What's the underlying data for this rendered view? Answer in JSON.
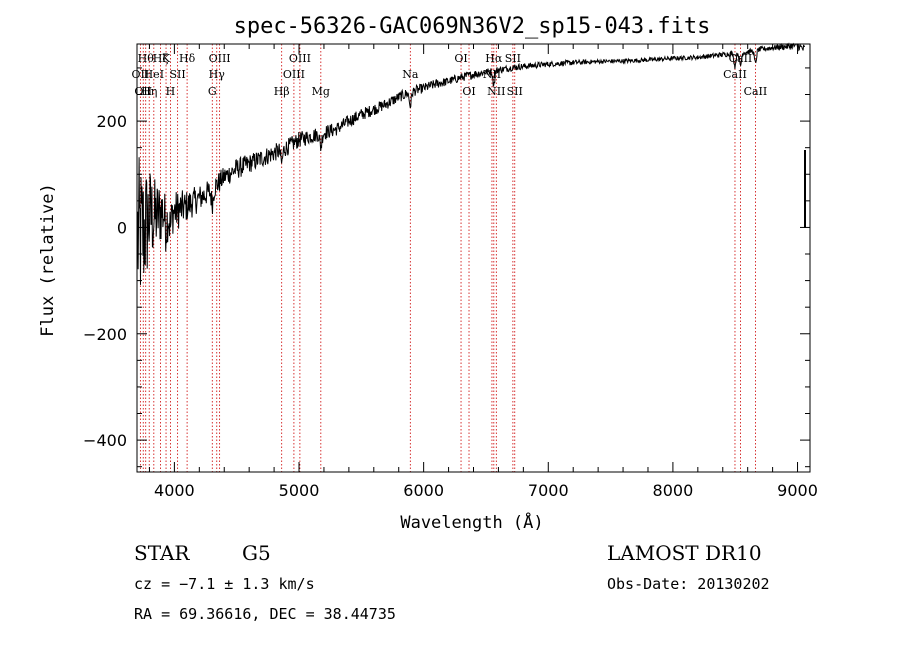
{
  "chart_data": {
    "type": "line",
    "title": "spec-56326-GAC069N36V2_sp15-043.fits",
    "xlabel": "Wavelength (Å)",
    "ylabel": "Flux (relative)",
    "xlim": [
      3700,
      9100
    ],
    "ylim": [
      -460,
      345
    ],
    "xticks": [
      {
        "value": 4000,
        "label": "4000"
      },
      {
        "value": 5000,
        "label": "5000"
      },
      {
        "value": 6000,
        "label": "6000"
      },
      {
        "value": 7000,
        "label": "7000"
      },
      {
        "value": 8000,
        "label": "8000"
      },
      {
        "value": 9000,
        "label": "9000"
      }
    ],
    "yticks": [
      {
        "value": -400,
        "label": "−400"
      },
      {
        "value": -200,
        "label": "−200"
      },
      {
        "value": 0,
        "label": "0"
      },
      {
        "value": 200,
        "label": "200"
      }
    ],
    "line_color": "#000000",
    "marker_color": "#cc0000",
    "spectrum": {
      "x": [
        3700,
        3750,
        3800,
        3850,
        3900,
        3950,
        4000,
        4100,
        4200,
        4300,
        4400,
        4500,
        4600,
        4700,
        4800,
        4900,
        5000,
        5100,
        5200,
        5300,
        5400,
        5500,
        5600,
        5700,
        5800,
        5900,
        6000,
        6100,
        6200,
        6300,
        6400,
        6500,
        6600,
        6700,
        6800,
        7000,
        7200,
        7400,
        7600,
        7800,
        8000,
        8200,
        8400,
        8500,
        8600,
        8700,
        8800,
        8900,
        9000,
        9050
      ],
      "y": [
        -20,
        -10,
        20,
        20,
        30,
        25,
        30,
        40,
        55,
        70,
        95,
        110,
        120,
        130,
        140,
        150,
        165,
        172,
        178,
        185,
        200,
        212,
        222,
        232,
        245,
        255,
        262,
        270,
        275,
        282,
        288,
        292,
        296,
        300,
        303,
        307,
        310,
        312,
        313,
        315,
        318,
        320,
        325,
        328,
        330,
        335,
        338,
        340,
        342,
        335
      ],
      "noise": [
        160,
        130,
        100,
        70,
        60,
        45,
        40,
        30,
        25,
        22,
        20,
        20,
        18,
        18,
        17,
        16,
        15,
        14,
        14,
        13,
        12,
        12,
        11,
        11,
        10,
        10,
        9,
        9,
        8,
        8,
        8,
        7,
        7,
        6,
        6,
        5,
        5,
        4,
        4,
        4,
        4,
        4,
        5,
        5,
        5,
        5,
        5,
        6,
        7,
        10
      ]
    },
    "lines": [
      {
        "wave": 3727,
        "label": "OII",
        "row": 2
      },
      {
        "wave": 3750,
        "label": "OII",
        "row": 3
      },
      {
        "wave": 3770,
        "label": "Hθ",
        "row": 1
      },
      {
        "wave": 3798,
        "label": "Hη",
        "row": 3
      },
      {
        "wave": 3835,
        "label": "HeI",
        "row": 2
      },
      {
        "wave": 3889,
        "label": "Hζ",
        "row": 1
      },
      {
        "wave": 3933,
        "label": "K",
        "row": 1
      },
      {
        "wave": 3968,
        "label": "H",
        "row": 3
      },
      {
        "wave": 4026,
        "label": "SII",
        "row": 2
      },
      {
        "wave": 4102,
        "label": "Hδ",
        "row": 1
      },
      {
        "wave": 4304,
        "label": "G",
        "row": 3
      },
      {
        "wave": 4340,
        "label": "Hγ",
        "row": 2
      },
      {
        "wave": 4363,
        "label": "OIII",
        "row": 1
      },
      {
        "wave": 4861,
        "label": "Hβ",
        "row": 3
      },
      {
        "wave": 4959,
        "label": "OIII",
        "row": 2
      },
      {
        "wave": 5007,
        "label": "OIII",
        "row": 1
      },
      {
        "wave": 5175,
        "label": "Mg",
        "row": 3
      },
      {
        "wave": 5893,
        "label": "Na",
        "row": 2
      },
      {
        "wave": 6300,
        "label": "OI",
        "row": 1
      },
      {
        "wave": 6364,
        "label": "OI",
        "row": 3
      },
      {
        "wave": 6548,
        "label": "NII",
        "row": 2
      },
      {
        "wave": 6563,
        "label": "Hα",
        "row": 1
      },
      {
        "wave": 6583,
        "label": "NII",
        "row": 3
      },
      {
        "wave": 6716,
        "label": "SII",
        "row": 1
      },
      {
        "wave": 6731,
        "label": "SII",
        "row": 3
      },
      {
        "wave": 8498,
        "label": "CaII",
        "row": 2
      },
      {
        "wave": 8542,
        "label": "CaII",
        "row": 1
      },
      {
        "wave": 8662,
        "label": "CaII",
        "row": 3
      }
    ]
  },
  "info": {
    "class": "STAR",
    "subclass": "G5",
    "survey": "LAMOST DR10",
    "cz": "cz = −7.1 ± 1.3 km/s",
    "obs_date": "Obs-Date: 20130202",
    "coords": "RA =  69.36616, DEC =  38.44735"
  }
}
